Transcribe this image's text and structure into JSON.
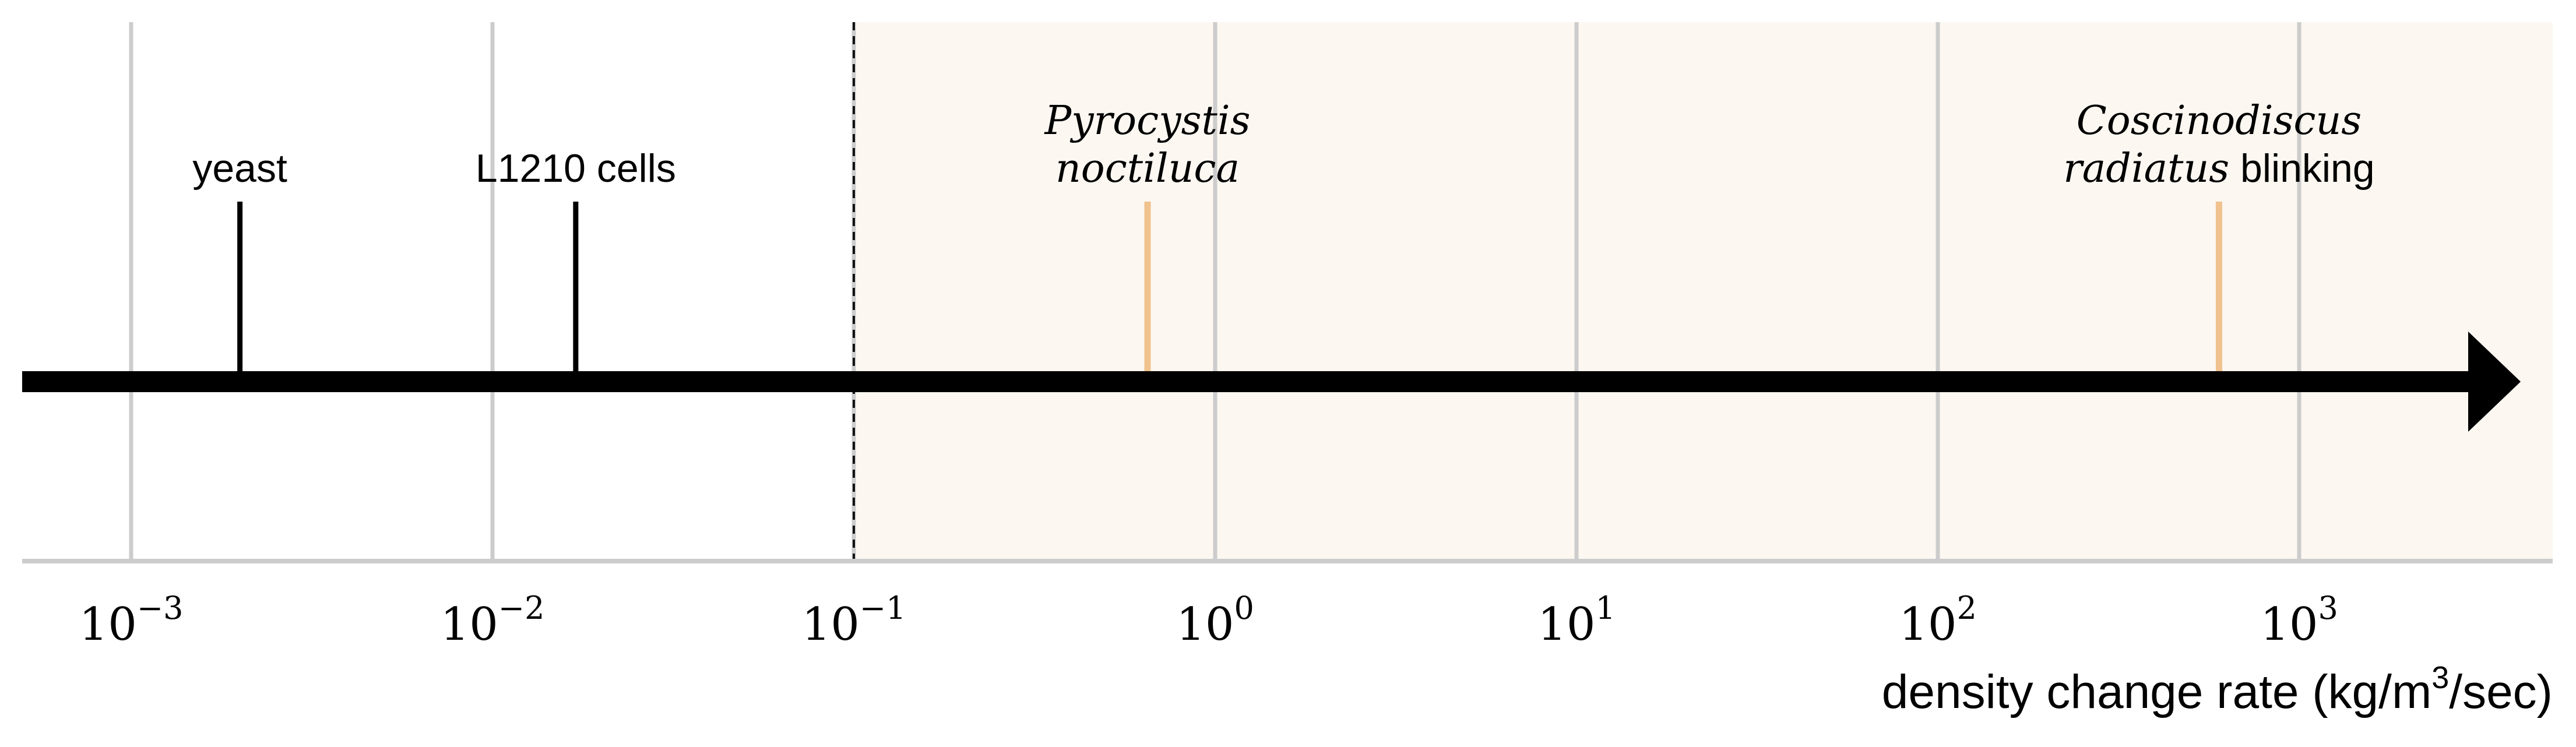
{
  "chart_data": {
    "type": "scatter",
    "x_scale": "log",
    "xlim": [
      0.0005,
      5000
    ],
    "grid": "vertical",
    "xlabel": "density change rate (kg/m³/sec)",
    "xlabel_parts": {
      "prefix": "density change rate (kg/m",
      "sup": "3",
      "suffix": "/sec)"
    },
    "tick_values": [
      0.001,
      0.01,
      0.1,
      1,
      10,
      100,
      1000
    ],
    "tick_labels": [
      {
        "base": "10",
        "exp": "−3"
      },
      {
        "base": "10",
        "exp": "−2"
      },
      {
        "base": "10",
        "exp": "−1"
      },
      {
        "base": "10",
        "exp": "0"
      },
      {
        "base": "10",
        "exp": "1"
      },
      {
        "base": "10",
        "exp": "2"
      },
      {
        "base": "10",
        "exp": "3"
      }
    ],
    "threshold": 0.1,
    "colors": {
      "marker_dark": "#000000",
      "marker_highlight": "#f0c28e",
      "shaded_region": "#fcf7f1",
      "grid": "#cccccc",
      "axis": "#000000"
    },
    "points": [
      {
        "x": 0.002,
        "label_lines": [
          {
            "normal": "yeast"
          }
        ],
        "color": "marker_dark"
      },
      {
        "x": 0.017,
        "label_lines": [
          {
            "normal": "L1210 cells"
          }
        ],
        "color": "marker_dark"
      },
      {
        "x": 0.65,
        "label_lines": [
          {
            "italic": "Pyrocystis"
          },
          {
            "italic": "noctiluca"
          }
        ],
        "color": "marker_highlight"
      },
      {
        "x": 600,
        "label_lines": [
          {
            "italic": "Coscinodiscus"
          },
          {
            "italic": "radiatus",
            "normal": " blinking"
          }
        ],
        "color": "marker_highlight"
      }
    ]
  }
}
